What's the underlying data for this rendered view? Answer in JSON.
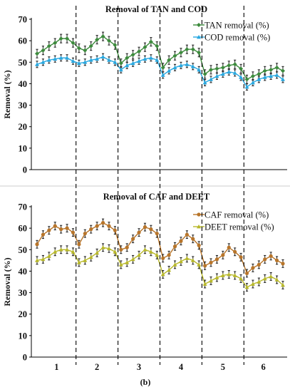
{
  "caption": "(b)",
  "group_labels": [
    "1",
    "2",
    "3",
    "4",
    "5",
    "6"
  ],
  "colors": {
    "tan": "#3c8a3c",
    "cod": "#29a8e0",
    "caf": "#b8752a",
    "deet": "#b8b82a",
    "error_bar": "#1a1a1a",
    "divider": "#000000",
    "panel_separator": "#cccccc"
  },
  "chart_data": [
    {
      "type": "line",
      "title": "Removal of TAN and COD",
      "xlabel": "",
      "ylabel": "Removal (%)",
      "ylim": [
        0,
        70
      ],
      "yticks": [
        0,
        10,
        20,
        30,
        40,
        50,
        60,
        70
      ],
      "grid": false,
      "legend": "top-right",
      "x": [
        1,
        2,
        3,
        4,
        5,
        6,
        7,
        8,
        9,
        10,
        11,
        12,
        13,
        14,
        15,
        16,
        17,
        18,
        19,
        20,
        21,
        22,
        23,
        24,
        25,
        26,
        27,
        28,
        29,
        30,
        31,
        32,
        33,
        34,
        35,
        36,
        37,
        38,
        39,
        40,
        41,
        42
      ],
      "group_boundaries": [
        7.5,
        14.5,
        21.5,
        28.5,
        35.5
      ],
      "series": [
        {
          "name": "TAN removal (%)",
          "marker": "diamond",
          "values": [
            54,
            55.5,
            57.5,
            59,
            61,
            61,
            59,
            56.5,
            55.5,
            57.5,
            60.5,
            62,
            60,
            58,
            49.5,
            52,
            53.5,
            55,
            57,
            59.5,
            57.5,
            47.5,
            51,
            53,
            54.5,
            56,
            56,
            54.5,
            44.5,
            46.5,
            47,
            47.5,
            48.5,
            49,
            47,
            42,
            43.5,
            44.5,
            46,
            46.5,
            47.5,
            46
          ],
          "error": 2
        },
        {
          "name": "COD removal (%)",
          "marker": "triangle",
          "values": [
            49,
            50,
            51,
            51.5,
            52,
            52,
            50.5,
            49.5,
            50,
            51,
            51.5,
            52.5,
            51,
            50,
            46.5,
            48.5,
            49.5,
            50.5,
            51.5,
            52,
            51,
            44,
            46,
            47.5,
            48.5,
            49,
            48,
            46.5,
            40.5,
            42,
            43.5,
            44.5,
            45.5,
            45,
            43,
            38.5,
            40.5,
            42,
            43,
            43.5,
            44,
            42
          ],
          "error": 1.5
        }
      ]
    },
    {
      "type": "line",
      "title": "Removal of CAF and DEET",
      "xlabel": "",
      "ylabel": "Removal (%)",
      "ylim": [
        0,
        70
      ],
      "yticks": [
        0,
        10,
        20,
        30,
        40,
        50,
        60,
        70
      ],
      "grid": false,
      "legend": "top-right",
      "x": [
        1,
        2,
        3,
        4,
        5,
        6,
        7,
        8,
        9,
        10,
        11,
        12,
        13,
        14,
        15,
        16,
        17,
        18,
        19,
        20,
        21,
        22,
        23,
        24,
        25,
        26,
        27,
        28,
        29,
        30,
        31,
        32,
        33,
        34,
        35,
        36,
        37,
        38,
        39,
        40,
        41,
        42
      ],
      "group_boundaries": [
        7.5,
        14.5,
        21.5,
        28.5,
        35.5
      ],
      "series": [
        {
          "name": "CAF removal (%)",
          "marker": "circle",
          "values": [
            52.5,
            57,
            59,
            61,
            59.5,
            60,
            58,
            52.5,
            57.5,
            59.5,
            61,
            62.5,
            61,
            59,
            50,
            51,
            55,
            58,
            60.5,
            59.5,
            57.5,
            46,
            47.5,
            51.5,
            54,
            57,
            55,
            52,
            42.5,
            44,
            45.5,
            47.5,
            51,
            49,
            46.5,
            39,
            41.5,
            43,
            45.5,
            47,
            45,
            43.5
          ],
          "error": 1.8
        },
        {
          "name": "DEET removal (%)",
          "marker": "triangle",
          "values": [
            45,
            45.5,
            47,
            49,
            50,
            50,
            49,
            44,
            45,
            46.5,
            48.5,
            51,
            50.5,
            49,
            43,
            44,
            45.5,
            47.5,
            50,
            49,
            47.5,
            38.5,
            40.5,
            43,
            44.5,
            46,
            45,
            43,
            34,
            35.5,
            37,
            38,
            38.5,
            38,
            36.5,
            32.5,
            34,
            35,
            36.5,
            37.5,
            36,
            33.5
          ],
          "error": 1.8
        }
      ]
    }
  ]
}
